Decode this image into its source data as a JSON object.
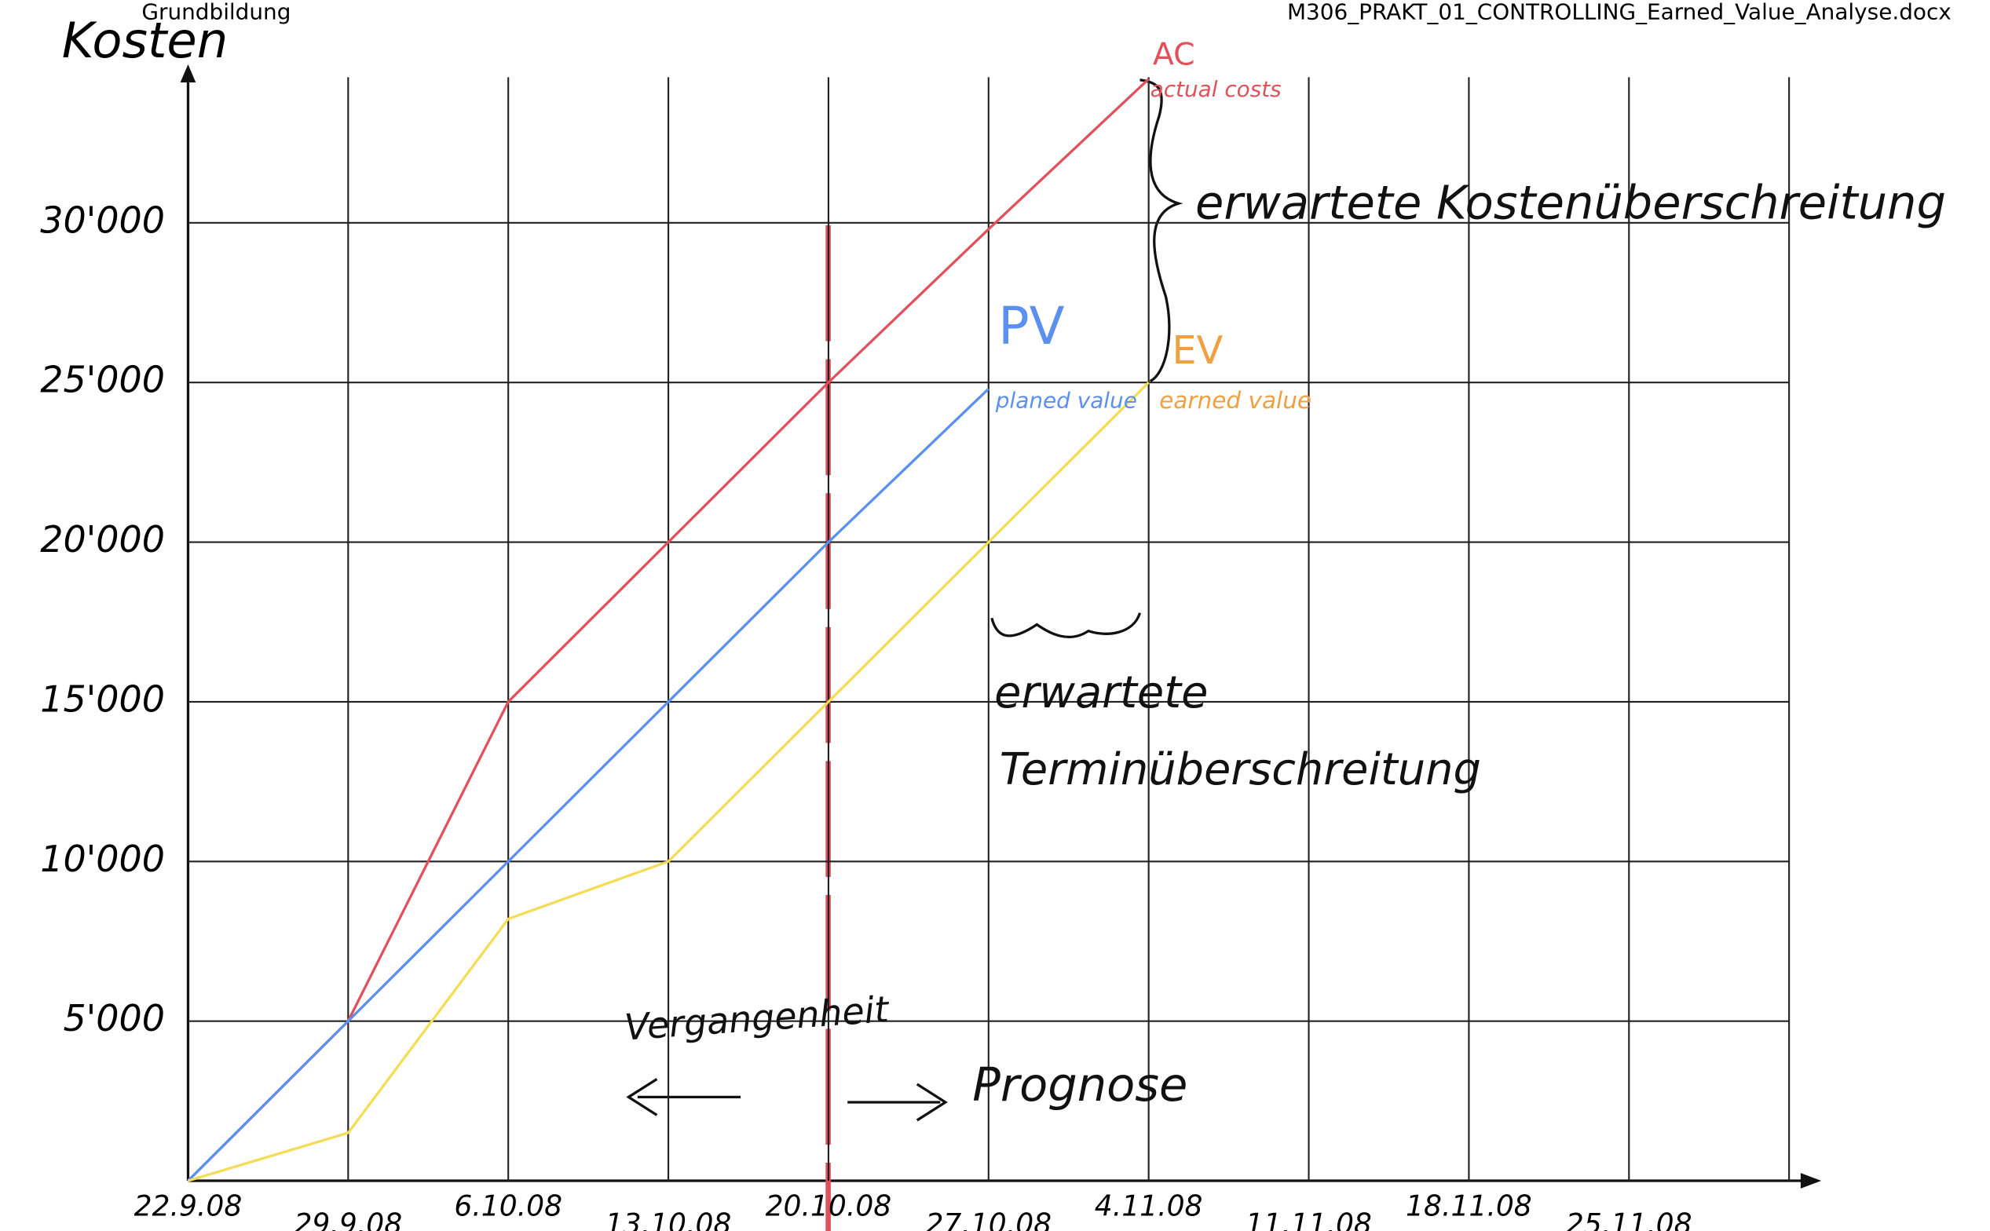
{
  "header": {
    "left": "Grundbildung",
    "right": "M306_PRAKT_01_CONTROLLING_Earned_Value_Analyse.docx"
  },
  "chart_data": {
    "type": "line",
    "y_label": "Kosten",
    "categories": [
      "22.9.08",
      "29.9.08",
      "6.10.08",
      "13.10.08",
      "20.10.08",
      "27.10.08",
      "4.11.08",
      "11.11.08",
      "18.11.08",
      "25.11.08"
    ],
    "series": [
      {
        "name": "AC",
        "color": "#e2505c",
        "values": [
          0,
          5000,
          15000,
          20000,
          25000,
          29800,
          34500,
          null,
          null,
          null
        ]
      },
      {
        "name": "PV",
        "color": "#5b8ff0",
        "values": [
          0,
          5000,
          10000,
          15000,
          20000,
          24800,
          null,
          null,
          null,
          null
        ]
      },
      {
        "name": "EV",
        "color": "#f5dc55",
        "values": [
          0,
          1500,
          8200,
          10000,
          15000,
          20000,
          25000,
          null,
          null,
          null
        ]
      }
    ],
    "ylim": [
      0,
      35000
    ],
    "yticks": [
      {
        "value": 5000,
        "label": "5'000"
      },
      {
        "value": 10000,
        "label": "10'000"
      },
      {
        "value": 15000,
        "label": "15'000"
      },
      {
        "value": 20000,
        "label": "20'000"
      },
      {
        "value": 25000,
        "label": "25'000"
      },
      {
        "value": 30000,
        "label": "30'000"
      }
    ],
    "grid": true,
    "annotations": [
      "actual costs",
      "planed value",
      "earned value",
      "erwartete Kostenüberschreitung",
      "erwartete",
      "Terminüberschreitung",
      "Vergangenheit",
      "Prognose"
    ]
  }
}
